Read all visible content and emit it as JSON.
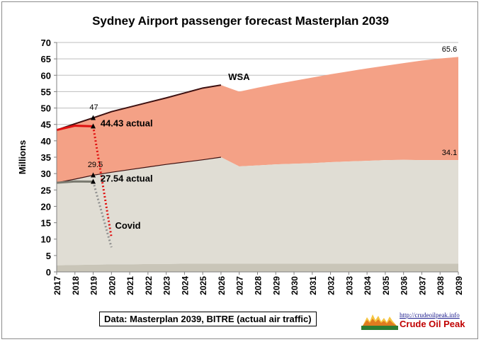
{
  "chart_data": {
    "type": "area",
    "title": "Sydney Airport passenger forecast Masterplan 2039",
    "ylabel": "Millions",
    "xlabel": "",
    "x": [
      2017,
      2018,
      2019,
      2020,
      2021,
      2022,
      2023,
      2024,
      2025,
      2026,
      2027,
      2028,
      2029,
      2030,
      2031,
      2032,
      2033,
      2034,
      2035,
      2036,
      2037,
      2038,
      2039
    ],
    "xlim": [
      2017,
      2039
    ],
    "ylim": [
      0,
      70
    ],
    "yticks": [
      0,
      5,
      10,
      15,
      20,
      25,
      30,
      35,
      40,
      45,
      50,
      55,
      60,
      65,
      70
    ],
    "grid": true,
    "colors": {
      "total_area": "#f4a186",
      "domestic_area": "#e0ddd4",
      "transit_band": "#c9c5b8",
      "forecast_line": "#3d1010",
      "actual_total": "#e01010",
      "actual_domestic": "#7a7a70",
      "covid_total": "#e01010",
      "covid_domestic": "#909090"
    },
    "series": [
      {
        "values": [
          43.3,
          45.2,
          47,
          48.9,
          50.3,
          51.7,
          53.1,
          54.6,
          56.1,
          57,
          55,
          56.2,
          57.3,
          58.3,
          59.3,
          60.3,
          61.2,
          62.1,
          62.9,
          63.7,
          64.5,
          65.1,
          65.6
        ],
        "line_to": 2026
      },
      {
        "values": [
          27.2,
          28.3,
          29.5,
          30.4,
          31.2,
          32,
          32.8,
          33.5,
          34.2,
          35,
          32.2,
          32.5,
          32.8,
          33,
          33.2,
          33.5,
          33.7,
          33.9,
          34.1,
          34.2,
          34.1,
          34.1,
          34.1
        ],
        "line_to": 2026
      },
      {
        "values": [
          2,
          2.1,
          2.2,
          2.3,
          2.3,
          2.4,
          2.4,
          2.5,
          2.5,
          2.5,
          2.5,
          2.5,
          2.5,
          2.5,
          2.5,
          2.5,
          2.5,
          2.5,
          2.5,
          2.5,
          2.5,
          2.5,
          2.5
        ]
      }
    ],
    "actual_total": {
      "x": [
        2017,
        2018,
        2019
      ],
      "values": [
        43.3,
        44.6,
        44.43
      ]
    },
    "actual_domestic": {
      "x": [
        2017,
        2018,
        2019
      ],
      "values": [
        27.2,
        27.6,
        27.54
      ]
    },
    "covid_total": {
      "x": [
        2019,
        2020
      ],
      "values": [
        44.43,
        10.5
      ]
    },
    "covid_domestic": {
      "x": [
        2019,
        2020
      ],
      "values": [
        27.54,
        7.5
      ]
    },
    "markers": [
      {
        "x": 2019,
        "y": 47
      },
      {
        "x": 2019,
        "y": 44.43
      },
      {
        "x": 2019,
        "y": 29.5
      },
      {
        "x": 2019,
        "y": 27.54
      }
    ],
    "annotations": [
      {
        "text": "47",
        "x": 2018.8,
        "y": 49.5
      },
      {
        "text": "29.5",
        "x": 2018.7,
        "y": 32
      },
      {
        "text": "44.43 actual",
        "x": 2019.4,
        "y": 44.4
      },
      {
        "text": "27.54 actual",
        "x": 2019.4,
        "y": 27.5
      },
      {
        "text": "WSA",
        "x": 2026.4,
        "y": 58.6
      },
      {
        "text": "Covid",
        "x": 2020.2,
        "y": 13.2
      },
      {
        "text": "65.6",
        "x": 2038.1,
        "y": 67.2
      },
      {
        "text": "34.1",
        "x": 2038.1,
        "y": 35.7
      }
    ]
  },
  "footer": {
    "source": "Data: Masterplan 2039, BITRE (actual air traffic)"
  },
  "logo": {
    "url": "http://crudeoilpeak.info",
    "name": "Crude Oil Peak"
  }
}
